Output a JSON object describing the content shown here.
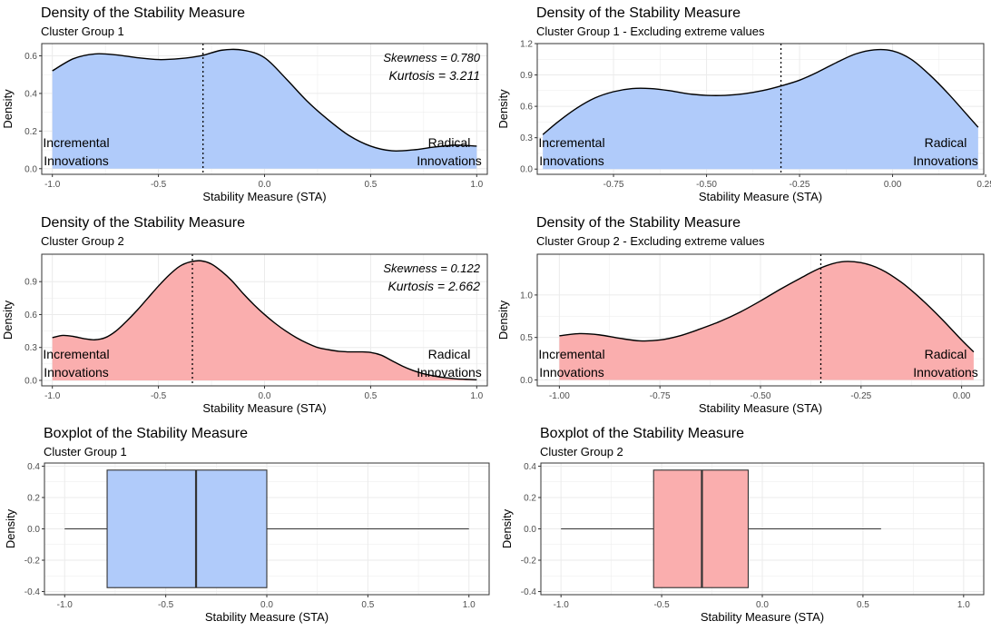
{
  "colors": {
    "blue_fill": "#b0cbfa",
    "red_fill": "#faaeae",
    "grid": "#ebebeb",
    "frame": "#333333"
  },
  "chart_data": [
    {
      "type": "area",
      "title": "Density of the Stability Measure",
      "subtitle": "Cluster Group 1",
      "xlabel": "Stability Measure (STA)",
      "ylabel": "Density",
      "xlim": [
        -1.05,
        1.05
      ],
      "ylim": [
        -0.03,
        0.665
      ],
      "xticks": [
        -1.0,
        -0.5,
        0.0,
        0.5,
        1.0
      ],
      "xtick_labels": [
        "-1.0",
        "-0.5",
        "0.0",
        "0.5",
        "1.0"
      ],
      "yticks": [
        0.0,
        0.2,
        0.4,
        0.6
      ],
      "ytick_labels": [
        "0.0",
        "0.2",
        "0.4",
        "0.6"
      ],
      "fill": "blue",
      "x": [
        -1.0,
        -0.9,
        -0.8,
        -0.7,
        -0.6,
        -0.5,
        -0.4,
        -0.3,
        -0.2,
        -0.1,
        0.0,
        0.1,
        0.2,
        0.3,
        0.4,
        0.5,
        0.6,
        0.7,
        0.8,
        0.9,
        1.0
      ],
      "y": [
        0.52,
        0.585,
        0.61,
        0.605,
        0.59,
        0.58,
        0.585,
        0.6,
        0.63,
        0.63,
        0.59,
        0.48,
        0.36,
        0.26,
        0.175,
        0.12,
        0.095,
        0.1,
        0.115,
        0.125,
        0.12
      ],
      "vline": -0.29,
      "annotations": {
        "left": [
          "Incremental",
          "Innovations"
        ],
        "right": [
          "Radical",
          "Innovations"
        ],
        "skewness": "Skewness = 0.780",
        "kurtosis": "Kurtosis = 3.211"
      }
    },
    {
      "type": "area",
      "title": "Density of the Stability Measure",
      "subtitle": "Cluster Group 1 - Excluding extreme values",
      "xlabel": "Stability Measure (STA)",
      "ylabel": "Density",
      "xlim": [
        -0.955,
        0.245
      ],
      "ylim": [
        -0.05,
        1.2
      ],
      "xticks": [
        -0.75,
        -0.5,
        -0.25,
        0.0,
        0.25
      ],
      "xtick_labels": [
        "-0.75",
        "-0.50",
        "-0.25",
        "0.00",
        "0.25"
      ],
      "yticks": [
        0.0,
        0.3,
        0.6,
        0.9,
        1.2
      ],
      "ytick_labels": [
        "0.0",
        "0.3",
        "0.6",
        "0.9",
        "1.2"
      ],
      "fill": "blue",
      "x": [
        -0.94,
        -0.9,
        -0.85,
        -0.8,
        -0.75,
        -0.7,
        -0.65,
        -0.6,
        -0.55,
        -0.5,
        -0.45,
        -0.4,
        -0.35,
        -0.3,
        -0.25,
        -0.2,
        -0.15,
        -0.1,
        -0.05,
        0.0,
        0.05,
        0.1,
        0.15,
        0.2,
        0.23
      ],
      "y": [
        0.33,
        0.45,
        0.58,
        0.68,
        0.74,
        0.77,
        0.77,
        0.75,
        0.72,
        0.705,
        0.705,
        0.72,
        0.75,
        0.795,
        0.85,
        0.93,
        1.02,
        1.1,
        1.14,
        1.13,
        1.05,
        0.9,
        0.72,
        0.52,
        0.4
      ],
      "vline": -0.3,
      "annotations": {
        "left": [
          "Incremental",
          "Innovations"
        ],
        "right": [
          "Radical",
          "Innovations"
        ]
      }
    },
    {
      "type": "area",
      "title": "Density of the Stability Measure",
      "subtitle": "Cluster Group 2",
      "xlabel": "Stability Measure (STA)",
      "ylabel": "Density",
      "xlim": [
        -1.05,
        1.05
      ],
      "ylim": [
        -0.05,
        1.15
      ],
      "xticks": [
        -1.0,
        -0.5,
        0.0,
        0.5,
        1.0
      ],
      "xtick_labels": [
        "-1.0",
        "-0.5",
        "0.0",
        "0.5",
        "1.0"
      ],
      "yticks": [
        0.0,
        0.3,
        0.6,
        0.9
      ],
      "ytick_labels": [
        "0.0",
        "0.3",
        "0.6",
        "0.9"
      ],
      "fill": "red",
      "x": [
        -1.0,
        -0.95,
        -0.9,
        -0.85,
        -0.8,
        -0.75,
        -0.7,
        -0.65,
        -0.6,
        -0.55,
        -0.5,
        -0.45,
        -0.4,
        -0.35,
        -0.3,
        -0.25,
        -0.2,
        -0.15,
        -0.1,
        -0.05,
        0.0,
        0.05,
        0.1,
        0.15,
        0.2,
        0.25,
        0.3,
        0.35,
        0.4,
        0.45,
        0.5,
        0.55,
        0.6,
        0.65,
        0.7,
        0.75,
        0.8,
        0.85,
        0.9,
        0.95,
        1.0
      ],
      "y": [
        0.39,
        0.41,
        0.4,
        0.38,
        0.37,
        0.39,
        0.45,
        0.54,
        0.64,
        0.75,
        0.86,
        0.96,
        1.04,
        1.08,
        1.09,
        1.06,
        0.99,
        0.9,
        0.79,
        0.69,
        0.6,
        0.52,
        0.45,
        0.39,
        0.34,
        0.3,
        0.28,
        0.265,
        0.26,
        0.26,
        0.255,
        0.23,
        0.18,
        0.13,
        0.09,
        0.06,
        0.04,
        0.025,
        0.015,
        0.01,
        0.005
      ],
      "vline": -0.34,
      "annotations": {
        "left": [
          "Incremental",
          "Innovations"
        ],
        "right": [
          "Radical",
          "Innovations"
        ],
        "skewness": "Skewness = 0.122",
        "kurtosis": "Kurtosis = 2.662"
      }
    },
    {
      "type": "area",
      "title": "Density of the Stability Measure",
      "subtitle": "Cluster Group 2 - Excluding extreme values",
      "xlabel": "Stability Measure (STA)",
      "ylabel": "Density",
      "xlim": [
        -1.055,
        0.055
      ],
      "ylim": [
        -0.07,
        1.48
      ],
      "xticks": [
        -1.0,
        -0.75,
        -0.5,
        -0.25,
        0.0
      ],
      "xtick_labels": [
        "-1.00",
        "-0.75",
        "-0.50",
        "-0.25",
        "0.00"
      ],
      "yticks": [
        0.0,
        0.5,
        1.0
      ],
      "ytick_labels": [
        "0.0",
        "0.5",
        "1.0"
      ],
      "fill": "red",
      "x": [
        -1.0,
        -0.95,
        -0.9,
        -0.85,
        -0.8,
        -0.75,
        -0.7,
        -0.65,
        -0.6,
        -0.55,
        -0.5,
        -0.45,
        -0.4,
        -0.35,
        -0.3,
        -0.25,
        -0.2,
        -0.15,
        -0.1,
        -0.05,
        0.0,
        0.03
      ],
      "y": [
        0.52,
        0.545,
        0.53,
        0.49,
        0.46,
        0.47,
        0.52,
        0.6,
        0.69,
        0.8,
        0.93,
        1.07,
        1.2,
        1.32,
        1.39,
        1.38,
        1.3,
        1.15,
        0.95,
        0.72,
        0.47,
        0.33
      ],
      "vline": -0.35,
      "annotations": {
        "left": [
          "Incremental",
          "Innovations"
        ],
        "right": [
          "Radical",
          "Innovations"
        ]
      }
    },
    {
      "type": "boxplot",
      "title": "Boxplot of the Stability Measure",
      "subtitle": "Cluster Group 1",
      "xlabel": "Stability Measure (STA)",
      "ylabel": "Density",
      "xlim": [
        -1.1,
        1.1
      ],
      "ylim": [
        -0.42,
        0.42
      ],
      "xticks": [
        -1.0,
        -0.5,
        0.0,
        0.5,
        1.0
      ],
      "xtick_labels": [
        "-1.0",
        "-0.5",
        "0.0",
        "0.5",
        "1.0"
      ],
      "yticks": [
        -0.4,
        -0.2,
        0.0,
        0.2,
        0.4
      ],
      "ytick_labels": [
        "-0.4",
        "-0.2",
        "0.0",
        "0.2",
        "0.4"
      ],
      "fill": "blue",
      "whisker_low": -1.0,
      "q1": -0.79,
      "median": -0.35,
      "q3": 0.0,
      "whisker_high": 1.0,
      "box_ylim": [
        -0.375,
        0.375
      ]
    },
    {
      "type": "boxplot",
      "title": "Boxplot of the Stability Measure",
      "subtitle": "Cluster Group 2",
      "xlabel": "Stability Measure (STA)",
      "ylabel": "Density",
      "xlim": [
        -1.1,
        1.1
      ],
      "ylim": [
        -0.42,
        0.42
      ],
      "xticks": [
        -1.0,
        -0.5,
        0.0,
        0.5,
        1.0
      ],
      "xtick_labels": [
        "-1.0",
        "-0.5",
        "0.0",
        "0.5",
        "1.0"
      ],
      "yticks": [
        -0.4,
        -0.2,
        0.0,
        0.2,
        0.4
      ],
      "ytick_labels": [
        "-0.4",
        "-0.2",
        "0.0",
        "0.2",
        "0.4"
      ],
      "fill": "red",
      "whisker_low": -1.0,
      "q1": -0.54,
      "median": -0.3,
      "q3": -0.07,
      "whisker_high": 0.59,
      "box_ylim": [
        -0.375,
        0.375
      ]
    }
  ]
}
